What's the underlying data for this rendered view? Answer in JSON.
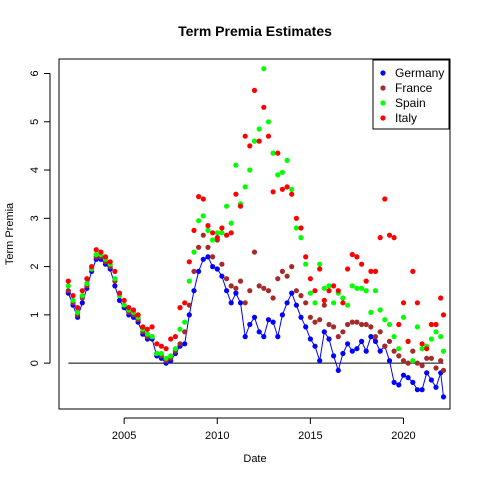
{
  "chart_data": {
    "type": "scatter",
    "title": "Term Premia Estimates",
    "xlabel": "Date",
    "ylabel": "Term Premia",
    "xlim": [
      2001.5,
      2022.5
    ],
    "ylim": [
      -0.95,
      6.3
    ],
    "x_ticks": [
      2005,
      2010,
      2015,
      2020
    ],
    "y_ticks": [
      0,
      1,
      2,
      3,
      4,
      5,
      6
    ],
    "legend_position": "top-right",
    "reference_line": {
      "y": 0,
      "color": "#000000"
    },
    "series": [
      {
        "name": "Germany",
        "color": "#0000ff",
        "connected": true,
        "x": [
          2002.0,
          2002.25,
          2002.5,
          2002.75,
          2003.0,
          2003.25,
          2003.5,
          2003.75,
          2004.0,
          2004.25,
          2004.5,
          2004.75,
          2005.0,
          2005.25,
          2005.5,
          2005.75,
          2006.0,
          2006.25,
          2006.5,
          2006.75,
          2007.0,
          2007.25,
          2007.5,
          2007.75,
          2008.0,
          2008.25,
          2008.5,
          2008.75,
          2009.0,
          2009.25,
          2009.5,
          2009.75,
          2010.0,
          2010.25,
          2010.5,
          2010.75,
          2011.0,
          2011.25,
          2011.5,
          2011.75,
          2012.0,
          2012.25,
          2012.5,
          2012.75,
          2013.0,
          2013.25,
          2013.5,
          2013.75,
          2014.0,
          2014.25,
          2014.5,
          2014.75,
          2015.0,
          2015.25,
          2015.5,
          2015.75,
          2016.0,
          2016.25,
          2016.5,
          2016.75,
          2017.0,
          2017.25,
          2017.5,
          2017.75,
          2018.0,
          2018.25,
          2018.5,
          2018.75,
          2019.0,
          2019.25,
          2019.5,
          2019.75,
          2020.0,
          2020.25,
          2020.5,
          2020.75,
          2021.0,
          2021.25,
          2021.5,
          2021.75,
          2022.0,
          2022.15
        ],
        "values": [
          1.45,
          1.2,
          0.95,
          1.25,
          1.55,
          1.9,
          2.15,
          2.15,
          2.05,
          1.95,
          1.6,
          1.3,
          1.15,
          1.0,
          0.95,
          0.85,
          0.6,
          0.5,
          0.5,
          0.15,
          0.1,
          0.0,
          0.05,
          0.2,
          0.35,
          0.4,
          1.0,
          1.5,
          1.9,
          2.15,
          2.2,
          2.0,
          1.95,
          1.8,
          1.5,
          1.25,
          1.45,
          1.25,
          0.55,
          0.8,
          0.95,
          0.65,
          0.55,
          0.9,
          0.85,
          0.55,
          1.0,
          1.25,
          1.45,
          1.2,
          0.95,
          0.75,
          0.5,
          0.35,
          0.05,
          0.65,
          0.5,
          0.15,
          -0.15,
          0.2,
          0.4,
          0.25,
          0.3,
          0.45,
          0.25,
          0.55,
          0.45,
          0.25,
          0.35,
          0.05,
          -0.4,
          -0.45,
          -0.25,
          -0.3,
          -0.4,
          -0.55,
          -0.55,
          -0.2,
          -0.35,
          -0.5,
          -0.2,
          -0.7
        ]
      },
      {
        "name": "France",
        "color": "#a52a2a",
        "connected": false,
        "x": [
          2002.0,
          2002.25,
          2002.5,
          2002.75,
          2003.0,
          2003.25,
          2003.5,
          2003.75,
          2004.0,
          2004.25,
          2004.5,
          2004.75,
          2005.0,
          2005.25,
          2005.5,
          2005.75,
          2006.0,
          2006.25,
          2006.5,
          2006.75,
          2007.0,
          2007.25,
          2007.5,
          2007.75,
          2008.0,
          2008.25,
          2008.5,
          2008.75,
          2009.0,
          2009.25,
          2009.5,
          2009.75,
          2010.0,
          2010.25,
          2010.5,
          2010.75,
          2011.0,
          2011.25,
          2011.5,
          2011.75,
          2012.0,
          2012.25,
          2012.5,
          2012.75,
          2013.0,
          2013.25,
          2013.5,
          2013.75,
          2014.0,
          2014.25,
          2014.5,
          2014.75,
          2015.0,
          2015.25,
          2015.5,
          2015.75,
          2016.0,
          2016.25,
          2016.5,
          2016.75,
          2017.0,
          2017.25,
          2017.5,
          2017.75,
          2018.0,
          2018.25,
          2018.5,
          2018.75,
          2019.0,
          2019.25,
          2019.5,
          2019.75,
          2020.0,
          2020.25,
          2020.5,
          2020.75,
          2021.0,
          2021.25,
          2021.5,
          2021.75,
          2022.0,
          2022.15
        ],
        "values": [
          1.5,
          1.25,
          1.0,
          1.35,
          1.6,
          1.95,
          2.2,
          2.2,
          2.1,
          2.0,
          1.7,
          1.4,
          1.2,
          1.05,
          1.0,
          0.9,
          0.65,
          0.55,
          0.55,
          0.2,
          0.15,
          0.05,
          0.1,
          0.25,
          0.4,
          0.65,
          1.2,
          1.9,
          2.4,
          2.65,
          2.4,
          2.2,
          2.55,
          2.05,
          1.75,
          1.6,
          1.55,
          1.7,
          1.25,
          1.5,
          2.3,
          1.6,
          1.55,
          1.5,
          1.35,
          1.75,
          1.9,
          1.8,
          2.0,
          1.5,
          1.4,
          1.25,
          0.95,
          0.85,
          0.9,
          1.2,
          0.8,
          0.75,
          0.55,
          0.65,
          0.8,
          0.85,
          0.85,
          0.8,
          0.8,
          0.75,
          0.55,
          0.65,
          0.35,
          0.45,
          0.25,
          0.15,
          0.05,
          0.0,
          0.25,
          0.0,
          -0.05,
          0.1,
          0.1,
          -0.1,
          0.05,
          -0.15
        ]
      },
      {
        "name": "Spain",
        "color": "#00ff00",
        "connected": false,
        "x": [
          2002.0,
          2002.25,
          2002.5,
          2002.75,
          2003.0,
          2003.25,
          2003.5,
          2003.75,
          2004.0,
          2004.25,
          2004.5,
          2004.75,
          2005.0,
          2005.25,
          2005.5,
          2005.75,
          2006.0,
          2006.25,
          2006.5,
          2006.75,
          2007.0,
          2007.25,
          2007.5,
          2007.75,
          2008.0,
          2008.25,
          2008.5,
          2008.75,
          2009.0,
          2009.25,
          2009.5,
          2009.75,
          2010.0,
          2010.25,
          2010.5,
          2010.75,
          2011.0,
          2011.25,
          2011.5,
          2011.75,
          2012.0,
          2012.25,
          2012.5,
          2012.75,
          2013.0,
          2013.25,
          2013.5,
          2013.75,
          2014.0,
          2014.25,
          2014.5,
          2014.75,
          2015.0,
          2015.25,
          2015.5,
          2015.75,
          2016.0,
          2016.25,
          2016.5,
          2016.75,
          2017.0,
          2017.25,
          2017.5,
          2017.75,
          2018.0,
          2018.25,
          2018.5,
          2018.75,
          2019.0,
          2019.25,
          2019.5,
          2019.75,
          2020.0,
          2020.25,
          2020.5,
          2020.75,
          2021.0,
          2021.25,
          2021.5,
          2021.75,
          2022.0,
          2022.15
        ],
        "values": [
          1.6,
          1.3,
          1.05,
          1.4,
          1.65,
          1.95,
          2.25,
          2.25,
          2.15,
          2.05,
          1.75,
          1.4,
          1.2,
          1.1,
          1.05,
          0.95,
          0.7,
          0.6,
          0.55,
          0.2,
          0.2,
          0.1,
          0.15,
          0.3,
          0.7,
          0.85,
          1.7,
          2.3,
          2.95,
          3.05,
          2.75,
          2.55,
          2.7,
          2.7,
          3.25,
          2.9,
          4.1,
          3.3,
          3.65,
          4.0,
          4.6,
          4.85,
          6.1,
          5.0,
          4.35,
          3.9,
          3.95,
          4.2,
          3.6,
          2.8,
          2.6,
          2.05,
          1.45,
          1.25,
          2.05,
          1.55,
          1.6,
          1.25,
          1.45,
          1.35,
          1.2,
          1.6,
          1.55,
          1.55,
          1.5,
          1.05,
          1.5,
          1.1,
          0.9,
          0.8,
          0.55,
          0.3,
          0.95,
          0.45,
          0.05,
          0.75,
          0.3,
          0.35,
          0.5,
          0.65,
          0.55,
          0.25
        ]
      },
      {
        "name": "Italy",
        "color": "#ff0000",
        "connected": false,
        "x": [
          2002.0,
          2002.25,
          2002.5,
          2002.75,
          2003.0,
          2003.25,
          2003.5,
          2003.75,
          2004.0,
          2004.25,
          2004.5,
          2004.75,
          2005.0,
          2005.25,
          2005.5,
          2005.75,
          2006.0,
          2006.25,
          2006.5,
          2006.75,
          2007.0,
          2007.25,
          2007.5,
          2007.75,
          2008.0,
          2008.25,
          2008.5,
          2008.75,
          2009.0,
          2009.25,
          2009.5,
          2009.75,
          2010.0,
          2010.25,
          2010.5,
          2010.75,
          2011.0,
          2011.25,
          2011.5,
          2011.75,
          2012.0,
          2012.25,
          2012.5,
          2012.75,
          2013.0,
          2013.25,
          2013.5,
          2013.75,
          2014.0,
          2014.25,
          2014.5,
          2014.75,
          2015.0,
          2015.25,
          2015.5,
          2015.75,
          2016.0,
          2016.25,
          2016.5,
          2016.75,
          2017.0,
          2017.25,
          2017.5,
          2017.75,
          2018.0,
          2018.25,
          2018.5,
          2018.75,
          2019.0,
          2019.25,
          2019.5,
          2019.75,
          2020.0,
          2020.25,
          2020.5,
          2020.75,
          2021.0,
          2021.25,
          2021.5,
          2021.75,
          2022.0,
          2022.15
        ],
        "values": [
          1.7,
          1.4,
          1.15,
          1.5,
          1.75,
          2.0,
          2.35,
          2.3,
          2.2,
          2.1,
          1.9,
          1.45,
          1.3,
          1.15,
          1.1,
          1.0,
          0.75,
          0.7,
          0.75,
          0.4,
          0.35,
          0.3,
          0.5,
          0.55,
          1.15,
          1.25,
          2.1,
          2.75,
          3.45,
          3.4,
          2.85,
          2.7,
          2.6,
          2.8,
          2.65,
          2.7,
          3.5,
          3.25,
          4.7,
          4.5,
          5.65,
          4.6,
          5.3,
          4.7,
          3.55,
          4.35,
          3.6,
          3.65,
          3.5,
          3.0,
          2.8,
          2.2,
          1.75,
          1.5,
          1.95,
          1.3,
          1.5,
          1.6,
          1.5,
          1.25,
          1.95,
          2.25,
          2.2,
          2.05,
          1.7,
          1.9,
          1.9,
          2.6,
          3.4,
          2.65,
          2.6,
          0.8,
          1.25,
          0.45,
          1.9,
          1.25,
          0.4,
          0.3,
          0.8,
          0.8,
          1.35,
          1.0
        ]
      }
    ]
  }
}
